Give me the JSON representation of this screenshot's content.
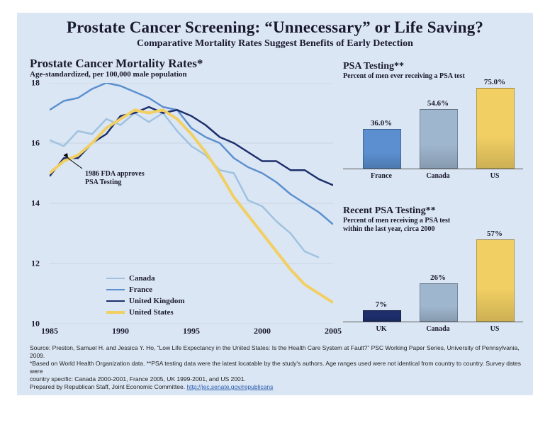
{
  "title": "Prostate Cancer Screening: “Unnecessary” or Life Saving?",
  "subtitle": "Comparative Mortality Rates Suggest Benefits of Early Detection",
  "line_chart": {
    "title": "Prostate Cancer Mortality Rates*",
    "subtitle": "Age-standardized, per 100,000 male population",
    "ylim": [
      10,
      18
    ],
    "ytick_step": 2,
    "xlim": [
      1985,
      2005
    ],
    "xtick_step": 5,
    "grid_color": "#c9d4e4",
    "annotation": {
      "text1": "1986 FDA approves",
      "text2": "PSA Testing",
      "x": 1987.5,
      "y": 15.2,
      "arrow_to_x": 1986,
      "arrow_to_y": 15.6
    },
    "series": [
      {
        "name": "Canada",
        "color": "#9fc2e0",
        "width": 2.5,
        "points": [
          [
            1985,
            16.1
          ],
          [
            1986,
            15.9
          ],
          [
            1987,
            16.4
          ],
          [
            1988,
            16.3
          ],
          [
            1989,
            16.8
          ],
          [
            1990,
            16.6
          ],
          [
            1991,
            17.0
          ],
          [
            1992,
            16.7
          ],
          [
            1993,
            17.0
          ],
          [
            1994,
            16.4
          ],
          [
            1995,
            15.9
          ],
          [
            1996,
            15.6
          ],
          [
            1997,
            15.1
          ],
          [
            1998,
            15.0
          ],
          [
            1999,
            14.1
          ],
          [
            2000,
            13.9
          ],
          [
            2001,
            13.4
          ],
          [
            2002,
            13.0
          ],
          [
            2003,
            12.4
          ],
          [
            2004,
            12.2
          ]
        ]
      },
      {
        "name": "France",
        "color": "#5b8fcf",
        "width": 2.5,
        "points": [
          [
            1985,
            17.1
          ],
          [
            1986,
            17.4
          ],
          [
            1987,
            17.5
          ],
          [
            1988,
            17.8
          ],
          [
            1989,
            18.0
          ],
          [
            1990,
            17.9
          ],
          [
            1991,
            17.7
          ],
          [
            1992,
            17.5
          ],
          [
            1993,
            17.2
          ],
          [
            1994,
            17.1
          ],
          [
            1995,
            16.5
          ],
          [
            1996,
            16.2
          ],
          [
            1997,
            16.0
          ],
          [
            1998,
            15.5
          ],
          [
            1999,
            15.2
          ],
          [
            2000,
            15.0
          ],
          [
            2001,
            14.7
          ],
          [
            2002,
            14.3
          ],
          [
            2003,
            14.0
          ],
          [
            2004,
            13.7
          ],
          [
            2005,
            13.3
          ]
        ]
      },
      {
        "name": "United Kingdom",
        "color": "#1c2e6b",
        "width": 2.5,
        "points": [
          [
            1985,
            14.9
          ],
          [
            1986,
            15.5
          ],
          [
            1987,
            15.5
          ],
          [
            1988,
            16.0
          ],
          [
            1989,
            16.3
          ],
          [
            1990,
            16.9
          ],
          [
            1991,
            17.0
          ],
          [
            1992,
            17.2
          ],
          [
            1993,
            17.0
          ],
          [
            1994,
            17.1
          ],
          [
            1995,
            16.9
          ],
          [
            1996,
            16.6
          ],
          [
            1997,
            16.2
          ],
          [
            1998,
            16.0
          ],
          [
            1999,
            15.7
          ],
          [
            2000,
            15.4
          ],
          [
            2001,
            15.4
          ],
          [
            2002,
            15.1
          ],
          [
            2003,
            15.1
          ],
          [
            2004,
            14.8
          ],
          [
            2005,
            14.6
          ]
        ]
      },
      {
        "name": "United States",
        "color": "#f1cf63",
        "width": 4,
        "points": [
          [
            1985,
            15.0
          ],
          [
            1986,
            15.4
          ],
          [
            1987,
            15.6
          ],
          [
            1988,
            16.0
          ],
          [
            1989,
            16.5
          ],
          [
            1990,
            16.8
          ],
          [
            1991,
            17.1
          ],
          [
            1992,
            17.0
          ],
          [
            1993,
            17.1
          ],
          [
            1994,
            16.8
          ],
          [
            1995,
            16.3
          ],
          [
            1996,
            15.7
          ],
          [
            1997,
            15.0
          ],
          [
            1998,
            14.2
          ],
          [
            1999,
            13.6
          ],
          [
            2000,
            13.0
          ],
          [
            2001,
            12.4
          ],
          [
            2002,
            11.8
          ],
          [
            2003,
            11.3
          ],
          [
            2004,
            11.0
          ],
          [
            2005,
            10.7
          ]
        ]
      }
    ]
  },
  "bar1": {
    "title": "PSA Testing**",
    "subtitle": "Percent of men ever receiving a PSA test",
    "ymax": 80,
    "bars": [
      {
        "label": "France",
        "value": 36.0,
        "text": "36.0%",
        "color": "#5b8fcf"
      },
      {
        "label": "Canada",
        "value": 54.6,
        "text": "54.6%",
        "color": "#9fb6cf"
      },
      {
        "label": "US",
        "value": 75.0,
        "text": "75.0%",
        "color": "#f1cf63"
      }
    ]
  },
  "bar2": {
    "title": "Recent PSA Testing**",
    "subtitle1": "Percent of men receiving a PSA test",
    "subtitle2": "within the last year, circa 2000",
    "ymax": 60,
    "bars": [
      {
        "label": "UK",
        "value": 7,
        "text": "7%",
        "color": "#1c2e6b"
      },
      {
        "label": "Canada",
        "value": 26,
        "text": "26%",
        "color": "#9fb6cf"
      },
      {
        "label": "US",
        "value": 57,
        "text": "57%",
        "color": "#f1cf63"
      }
    ]
  },
  "footnote": {
    "l1": "Source: Preston, Samuel H. and Jessica Y. Ho, “Low Life Expectancy in the United States: Is the Health Care System at Fault?” PSC Working Paper Series, University of Pennsylvania, 2009.",
    "l2": "*Based on World Health Organization data. **PSA testing data were the latest locatable by the study's authors. Age ranges used were not identical from country to country. Survey dates were",
    "l3": "country specific: Canada 2000-2001, France 2005, UK 1999-2001, and US 2001.",
    "l4_prefix": "Prepared by Republican Staff, Joint Economic Committee. ",
    "l4_link": "http://jec.senate.gov/republicans"
  }
}
